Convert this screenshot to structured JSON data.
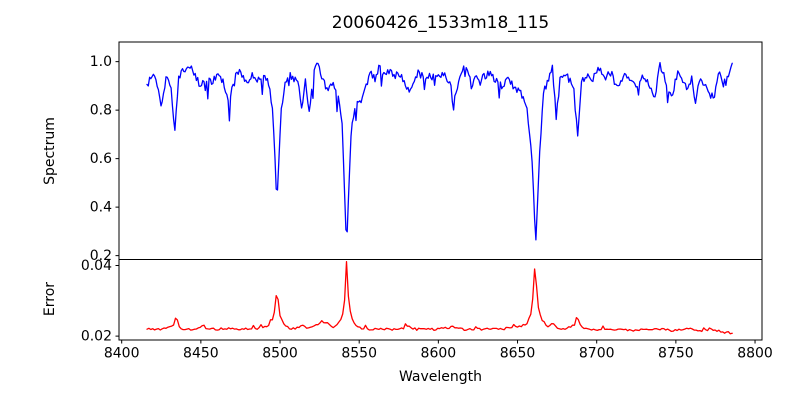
{
  "title": {
    "text": "20060426_1533m18_115"
  },
  "chart_data": [
    {
      "type": "line",
      "title": "20060426_1533m18_115",
      "ylabel": "Spectrum",
      "line_color": "#0000ff",
      "xlim": [
        8398.3,
        8804.4
      ],
      "ylim": [
        0.184,
        1.081
      ],
      "yticks": [
        0.2,
        0.4,
        0.6,
        0.8,
        1.0
      ],
      "ytick_decimals": 1,
      "x_data_range": [
        8416,
        8786
      ],
      "sample_step": 0.8,
      "major_absorption_lines": [
        {
          "wavelength": 8498,
          "core_flux": 0.42
        },
        {
          "wavelength": 8542,
          "core_flux": 0.23
        },
        {
          "wavelength": 8662,
          "core_flux": 0.25
        }
      ],
      "noise": {
        "seed": 20060426,
        "jitter": 0.016,
        "dip_prob": 0.055,
        "dip_min": 0.02,
        "dip_max": 0.09,
        "clamp_max": 1.03,
        "quiet_below": 0.6
      },
      "anchors": [
        [
          8416,
          0.9
        ],
        [
          8419,
          0.94
        ],
        [
          8422,
          0.92
        ],
        [
          8425,
          0.795
        ],
        [
          8428,
          0.945
        ],
        [
          8431,
          0.9
        ],
        [
          8433.5,
          0.715
        ],
        [
          8436,
          0.93
        ],
        [
          8439,
          0.965
        ],
        [
          8443,
          0.99
        ],
        [
          8447,
          0.93
        ],
        [
          8450,
          0.905
        ],
        [
          8453,
          0.945
        ],
        [
          8457,
          0.92
        ],
        [
          8461,
          0.95
        ],
        [
          8464,
          0.92
        ],
        [
          8468,
          0.81
        ],
        [
          8471,
          0.94
        ],
        [
          8475,
          0.955
        ],
        [
          8479,
          0.91
        ],
        [
          8483,
          0.95
        ],
        [
          8487,
          0.92
        ],
        [
          8490,
          0.945
        ],
        [
          8493,
          0.9
        ],
        [
          8495.5,
          0.8
        ],
        [
          8498,
          0.415
        ],
        [
          8500.5,
          0.78
        ],
        [
          8503,
          0.9
        ],
        [
          8506,
          0.955
        ],
        [
          8509,
          0.92
        ],
        [
          8511,
          0.94
        ],
        [
          8514,
          0.79
        ],
        [
          8516,
          0.93
        ],
        [
          8518.5,
          0.78
        ],
        [
          8521,
          0.95
        ],
        [
          8524,
          1.0
        ],
        [
          8527,
          0.92
        ],
        [
          8530,
          0.885
        ],
        [
          8533,
          0.91
        ],
        [
          8536,
          0.87
        ],
        [
          8539,
          0.78
        ],
        [
          8542,
          0.235
        ],
        [
          8545,
          0.72
        ],
        [
          8548,
          0.84
        ],
        [
          8551,
          0.825
        ],
        [
          8554,
          0.91
        ],
        [
          8557,
          0.955
        ],
        [
          8560,
          0.93
        ],
        [
          8563,
          0.99
        ],
        [
          8566,
          0.935
        ],
        [
          8569,
          0.96
        ],
        [
          8572,
          0.94
        ],
        [
          8575,
          0.955
        ],
        [
          8578,
          0.93
        ],
        [
          8582,
          0.865
        ],
        [
          8585,
          0.935
        ],
        [
          8588,
          0.955
        ],
        [
          8591,
          0.93
        ],
        [
          8594,
          0.95
        ],
        [
          8598,
          0.925
        ],
        [
          8602,
          0.95
        ],
        [
          8606,
          0.93
        ],
        [
          8610.5,
          0.86
        ],
        [
          8614,
          0.945
        ],
        [
          8618,
          0.99
        ],
        [
          8621,
          0.89
        ],
        [
          8624,
          0.945
        ],
        [
          8628,
          0.93
        ],
        [
          8632,
          0.955
        ],
        [
          8636,
          0.92
        ],
        [
          8640,
          0.9
        ],
        [
          8644,
          0.925
        ],
        [
          8648,
          0.895
        ],
        [
          8652,
          0.87
        ],
        [
          8656,
          0.8
        ],
        [
          8659,
          0.62
        ],
        [
          8661.5,
          0.25
        ],
        [
          8664,
          0.62
        ],
        [
          8666.5,
          0.87
        ],
        [
          8669,
          0.92
        ],
        [
          8672,
          0.99
        ],
        [
          8674.5,
          0.765
        ],
        [
          8677,
          0.94
        ],
        [
          8680,
          0.955
        ],
        [
          8683,
          0.92
        ],
        [
          8685.5,
          0.88
        ],
        [
          8688,
          0.7
        ],
        [
          8690.5,
          0.91
        ],
        [
          8693,
          0.95
        ],
        [
          8697,
          0.92
        ],
        [
          8701,
          0.98
        ],
        [
          8705,
          0.93
        ],
        [
          8709,
          0.955
        ],
        [
          8713,
          0.89
        ],
        [
          8717,
          0.945
        ],
        [
          8721,
          0.92
        ],
        [
          8725,
          0.9
        ],
        [
          8729,
          0.945
        ],
        [
          8733,
          0.9
        ],
        [
          8736.5,
          0.845
        ],
        [
          8740,
          0.99
        ],
        [
          8744,
          0.91
        ],
        [
          8747.5,
          0.86
        ],
        [
          8751,
          0.955
        ],
        [
          8754,
          0.92
        ],
        [
          8757,
          0.89
        ],
        [
          8760,
          0.93
        ],
        [
          8762.5,
          0.82
        ],
        [
          8765,
          0.94
        ],
        [
          8768,
          0.9
        ],
        [
          8771,
          0.87
        ],
        [
          8774,
          0.855
        ],
        [
          8777,
          0.95
        ],
        [
          8780,
          0.91
        ],
        [
          8783,
          0.945
        ],
        [
          8786,
          1.01
        ]
      ]
    },
    {
      "type": "line",
      "ylabel": "Error",
      "xlabel": "Wavelength",
      "line_color": "#ff0000",
      "xlim": [
        8398.3,
        8804.4
      ],
      "ylim": [
        0.0189,
        0.0417
      ],
      "yticks": [
        0.02,
        0.04
      ],
      "ytick_decimals": 2,
      "xticks": [
        8400,
        8450,
        8500,
        8550,
        8600,
        8650,
        8700,
        8750,
        8800
      ],
      "x_data_range": [
        8416,
        8786
      ],
      "sample_step": 1.2,
      "error_peaks": [
        {
          "wavelength": 8435,
          "value": 0.025
        },
        {
          "wavelength": 8498,
          "value": 0.033
        },
        {
          "wavelength": 8542,
          "value": 0.041
        },
        {
          "wavelength": 8662,
          "value": 0.04
        },
        {
          "wavelength": 8688,
          "value": 0.025
        }
      ],
      "noise": {
        "seed": 1533,
        "jitter": 0.0003,
        "spike_prob": 0.05,
        "spike_min": 0.0003,
        "spike_max": 0.0011,
        "clamp_min": 0.0204
      },
      "anchors": [
        [
          8416,
          0.0222
        ],
        [
          8422,
          0.0219
        ],
        [
          8428,
          0.0221
        ],
        [
          8432,
          0.0226
        ],
        [
          8435,
          0.0247
        ],
        [
          8437,
          0.0222
        ],
        [
          8441,
          0.0218
        ],
        [
          8446,
          0.022
        ],
        [
          8451,
          0.0227
        ],
        [
          8455,
          0.0222
        ],
        [
          8460,
          0.0219
        ],
        [
          8466,
          0.0222
        ],
        [
          8472,
          0.0219
        ],
        [
          8478,
          0.0221
        ],
        [
          8484,
          0.022
        ],
        [
          8489,
          0.0224
        ],
        [
          8493,
          0.0231
        ],
        [
          8496,
          0.0254
        ],
        [
          8498,
          0.0332
        ],
        [
          8500,
          0.0258
        ],
        [
          8503,
          0.0228
        ],
        [
          8507,
          0.0221
        ],
        [
          8511,
          0.0223
        ],
        [
          8514,
          0.0229
        ],
        [
          8518,
          0.0224
        ],
        [
          8522,
          0.0228
        ],
        [
          8526,
          0.0242
        ],
        [
          8529,
          0.0237
        ],
        [
          8532,
          0.0228
        ],
        [
          8535,
          0.0226
        ],
        [
          8538,
          0.0242
        ],
        [
          8540.5,
          0.0275
        ],
        [
          8542,
          0.0408
        ],
        [
          8543.5,
          0.0288
        ],
        [
          8546,
          0.0244
        ],
        [
          8549,
          0.0227
        ],
        [
          8553,
          0.0221
        ],
        [
          8558,
          0.0219
        ],
        [
          8564,
          0.0221
        ],
        [
          8570,
          0.0218
        ],
        [
          8576,
          0.022
        ],
        [
          8581,
          0.0229
        ],
        [
          8586,
          0.0219
        ],
        [
          8592,
          0.0221
        ],
        [
          8598,
          0.0219
        ],
        [
          8604,
          0.0222
        ],
        [
          8610,
          0.0226
        ],
        [
          8616,
          0.0219
        ],
        [
          8622,
          0.022
        ],
        [
          8628,
          0.0219
        ],
        [
          8634,
          0.0221
        ],
        [
          8640,
          0.022
        ],
        [
          8646,
          0.0223
        ],
        [
          8652,
          0.0227
        ],
        [
          8656,
          0.0235
        ],
        [
          8659,
          0.0268
        ],
        [
          8661,
          0.0399
        ],
        [
          8663,
          0.0285
        ],
        [
          8666,
          0.0235
        ],
        [
          8669,
          0.0227
        ],
        [
          8672,
          0.0237
        ],
        [
          8675,
          0.0224
        ],
        [
          8679,
          0.0221
        ],
        [
          8683,
          0.0225
        ],
        [
          8686,
          0.0232
        ],
        [
          8688,
          0.0248
        ],
        [
          8690,
          0.0228
        ],
        [
          8694,
          0.022
        ],
        [
          8699,
          0.0218
        ],
        [
          8705,
          0.0219
        ],
        [
          8711,
          0.0217
        ],
        [
          8717,
          0.0219
        ],
        [
          8723,
          0.0217
        ],
        [
          8729,
          0.0219
        ],
        [
          8735,
          0.0218
        ],
        [
          8741,
          0.022
        ],
        [
          8747,
          0.0216
        ],
        [
          8753,
          0.0218
        ],
        [
          8759,
          0.022
        ],
        [
          8764,
          0.0215
        ],
        [
          8769,
          0.0217
        ],
        [
          8774,
          0.0219
        ],
        [
          8779,
          0.0212
        ],
        [
          8783,
          0.021
        ],
        [
          8786,
          0.0207
        ]
      ]
    }
  ],
  "axis_style": {
    "spine_color": "#000000",
    "tick_color": "#000000"
  }
}
